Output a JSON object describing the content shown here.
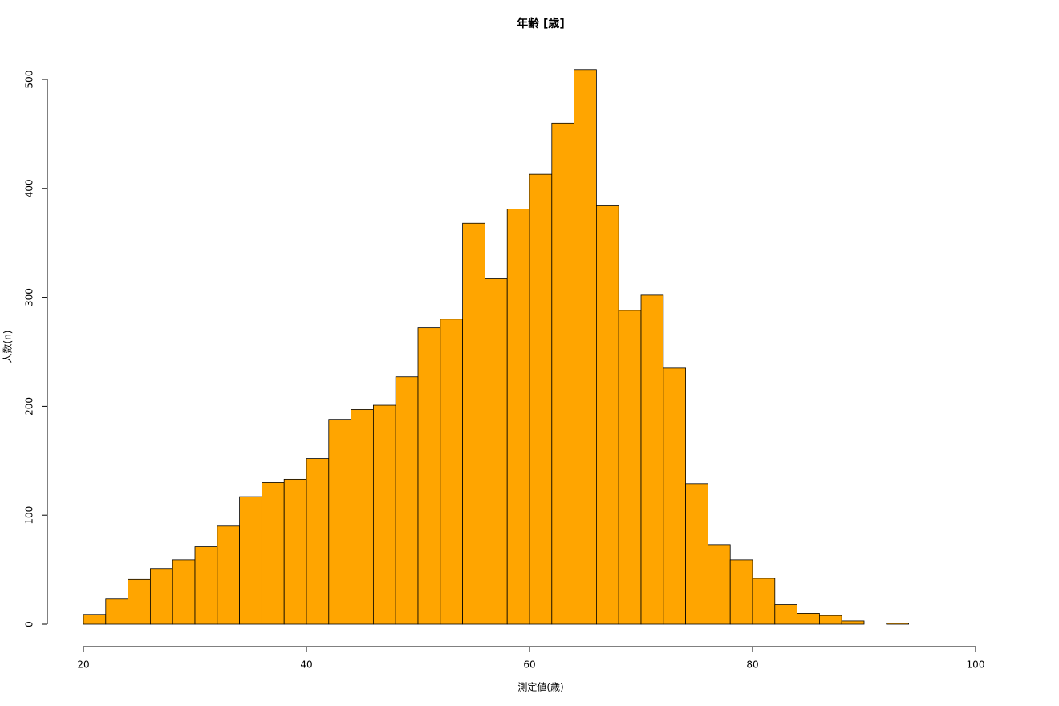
{
  "chart_data": {
    "type": "histogram",
    "title": "年齢 [歳]",
    "x_label": "測定値(歳)",
    "y_label": "人数(n)",
    "bins": [
      20,
      22,
      24,
      26,
      28,
      30,
      32,
      34,
      36,
      38,
      40,
      42,
      44,
      46,
      48,
      50,
      52,
      54,
      56,
      58,
      60,
      62,
      64,
      66,
      68,
      70,
      72,
      74,
      76,
      78,
      80,
      82,
      84,
      86,
      88,
      90,
      92,
      94
    ],
    "values": [
      9,
      23,
      41,
      51,
      59,
      71,
      90,
      117,
      130,
      133,
      152,
      188,
      197,
      201,
      227,
      272,
      280,
      368,
      317,
      381,
      413,
      460,
      509,
      384,
      288,
      302,
      235,
      129,
      73,
      59,
      42,
      18,
      10,
      8,
      3,
      0,
      1
    ],
    "color": "#ffa500",
    "edge_color": "#000000",
    "xlim": [
      20,
      100
    ],
    "xticks": [
      20,
      40,
      60,
      80,
      100
    ],
    "ylim": [
      0,
      500
    ],
    "yticks": [
      0,
      100,
      200,
      300,
      400,
      500
    ],
    "grid": false
  }
}
